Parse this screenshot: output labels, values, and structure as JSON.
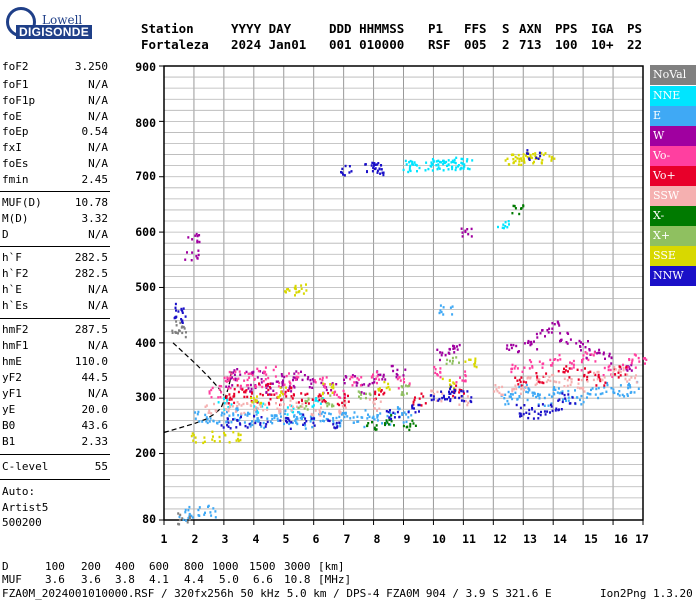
{
  "logo": {
    "line1": "Lowell",
    "line2": "DIGISONDE"
  },
  "header": {
    "labels": [
      "Station",
      "YYYY DAY",
      "DDD HHMMSS",
      "P1",
      "FFS",
      "S",
      "AXN",
      "PPS",
      "IGA",
      "PS"
    ],
    "values": [
      "Fortaleza",
      "2024 Jan01",
      "001 010000",
      "RSF",
      "005",
      "2",
      "713",
      "100",
      "10+",
      "22"
    ]
  },
  "params": [
    {
      "label": "foF2",
      "value": "3.250"
    },
    {
      "label": "foF1",
      "value": "N/A"
    },
    {
      "label": "foF1p",
      "value": "N/A"
    },
    {
      "label": "foE",
      "value": "N/A"
    },
    {
      "label": "foEp",
      "value": "0.54"
    },
    {
      "label": "fxI",
      "value": "N/A"
    },
    {
      "label": "foEs",
      "value": "N/A"
    },
    {
      "label": "fmin",
      "value": "2.45"
    },
    {
      "label": "MUF(D)",
      "value": "10.78"
    },
    {
      "label": "M(D)",
      "value": "3.32"
    },
    {
      "label": "D",
      "value": "N/A"
    },
    {
      "label": "h`F",
      "value": "282.5"
    },
    {
      "label": "h`F2",
      "value": "282.5"
    },
    {
      "label": "h`E",
      "value": "N/A"
    },
    {
      "label": "h`Es",
      "value": "N/A"
    },
    {
      "label": "hmF2",
      "value": "287.5"
    },
    {
      "label": "hmF1",
      "value": "N/A"
    },
    {
      "label": "hmE",
      "value": "110.0"
    },
    {
      "label": "yF2",
      "value": "44.5"
    },
    {
      "label": "yF1",
      "value": "N/A"
    },
    {
      "label": "yE",
      "value": "20.0"
    },
    {
      "label": "B0",
      "value": "43.6"
    },
    {
      "label": "B1",
      "value": "2.33"
    },
    {
      "label": "C-level",
      "value": "55"
    }
  ],
  "auto": {
    "line1": "Auto:",
    "line2": "Artist5",
    "line3": "500200"
  },
  "legend": [
    {
      "label": "NoVal",
      "color": "#808080",
      "text_color": "#ffffff"
    },
    {
      "label": "NNE",
      "color": "#00e5ff",
      "text_color": "#ffffff"
    },
    {
      "label": "E",
      "color": "#3fa9f5",
      "text_color": "#ffffff"
    },
    {
      "label": "W",
      "color": "#a000a0",
      "text_color": "#ffffff"
    },
    {
      "label": "Vo-",
      "color": "#ff3fa0",
      "text_color": "#ffffff"
    },
    {
      "label": "Vo+",
      "color": "#e8002a",
      "text_color": "#ffffff"
    },
    {
      "label": "SSW",
      "color": "#f5b0b0",
      "text_color": "#ffffff"
    },
    {
      "label": "X-",
      "color": "#007a00",
      "text_color": "#ffffff"
    },
    {
      "label": "X+",
      "color": "#8fc060",
      "text_color": "#ffffff"
    },
    {
      "label": "SSE",
      "color": "#d8d800",
      "text_color": "#ffffff"
    },
    {
      "label": "NNW",
      "color": "#1a10c8",
      "text_color": "#ffffff"
    }
  ],
  "chart_data": {
    "type": "scatter",
    "xlim": [
      1,
      17
    ],
    "ylim": [
      80,
      900
    ],
    "x_ticks": [
      "1",
      "2",
      "3",
      "4",
      "5",
      "6",
      "7",
      "8",
      "9",
      "10",
      "11",
      "12",
      "13",
      "14",
      "15",
      "16",
      "17"
    ],
    "y_ticks": [
      "900",
      "800",
      "700",
      "600",
      "500",
      "400",
      "300",
      "200",
      "80"
    ],
    "trace_curve": [
      [
        1.0,
        238
      ],
      [
        1.5,
        246
      ],
      [
        2.0,
        254
      ],
      [
        2.4,
        262
      ],
      [
        2.7,
        272
      ],
      [
        2.9,
        282
      ],
      [
        3.0,
        295
      ],
      [
        3.1,
        310
      ],
      [
        3.2,
        330
      ],
      [
        3.25,
        350
      ]
    ],
    "trace_curve_upper": [
      [
        1.3,
        400
      ],
      [
        1.7,
        380
      ],
      [
        2.1,
        360
      ],
      [
        2.5,
        338
      ],
      [
        2.8,
        320
      ],
      [
        3.0,
        305
      ]
    ],
    "series": [
      {
        "name": "NNE",
        "points": [
          [
            9.9,
            722
          ],
          [
            10.1,
            724
          ],
          [
            10.3,
            725
          ],
          [
            10.5,
            723
          ],
          [
            10.7,
            726
          ],
          [
            10.9,
            725
          ],
          [
            11.1,
            724
          ],
          [
            9.2,
            720
          ],
          [
            9.4,
            721
          ],
          [
            12.3,
            620
          ],
          [
            3.0,
            292
          ],
          [
            4.2,
            285
          ],
          [
            5.3,
            278
          ],
          [
            6.1,
            292
          ]
        ]
      },
      {
        "name": "E",
        "points": [
          [
            2.2,
            270
          ],
          [
            2.6,
            262
          ],
          [
            3.1,
            268
          ],
          [
            3.4,
            275
          ],
          [
            3.7,
            262
          ],
          [
            4.0,
            270
          ],
          [
            4.3,
            258
          ],
          [
            4.6,
            265
          ],
          [
            4.9,
            270
          ],
          [
            5.2,
            262
          ],
          [
            5.5,
            268
          ],
          [
            5.8,
            258
          ],
          [
            6.1,
            265
          ],
          [
            6.4,
            270
          ],
          [
            6.7,
            262
          ],
          [
            7.1,
            268
          ],
          [
            7.5,
            260
          ],
          [
            7.9,
            272
          ],
          [
            8.3,
            265
          ],
          [
            8.7,
            275
          ],
          [
            9.1,
            268
          ],
          [
            12.4,
            300
          ],
          [
            12.7,
            310
          ],
          [
            13.0,
            318
          ],
          [
            13.3,
            305
          ],
          [
            13.7,
            298
          ],
          [
            14.1,
            312
          ],
          [
            14.5,
            308
          ],
          [
            14.9,
            300
          ],
          [
            15.4,
            312
          ],
          [
            15.8,
            320
          ],
          [
            16.3,
            315
          ],
          [
            16.7,
            322
          ],
          [
            1.6,
            90
          ],
          [
            2.0,
            95
          ],
          [
            2.5,
            97
          ],
          [
            10.4,
            460
          ]
        ]
      },
      {
        "name": "W",
        "points": [
          [
            1.9,
            560
          ],
          [
            1.95,
            590
          ],
          [
            3.2,
            330
          ],
          [
            3.5,
            345
          ],
          [
            3.8,
            320
          ],
          [
            4.1,
            340
          ],
          [
            4.4,
            318
          ],
          [
            4.8,
            335
          ],
          [
            5.1,
            325
          ],
          [
            5.5,
            342
          ],
          [
            6.0,
            330
          ],
          [
            6.5,
            320
          ],
          [
            7.2,
            335
          ],
          [
            7.8,
            320
          ],
          [
            8.2,
            340
          ],
          [
            8.8,
            350
          ],
          [
            10.3,
            380
          ],
          [
            10.7,
            390
          ],
          [
            11.1,
            605
          ],
          [
            12.6,
            390
          ],
          [
            13.2,
            400
          ],
          [
            13.6,
            420
          ],
          [
            14.1,
            430
          ],
          [
            14.4,
            410
          ],
          [
            14.9,
            395
          ],
          [
            15.3,
            380
          ],
          [
            15.7,
            375
          ],
          [
            16.4,
            360
          ]
        ]
      },
      {
        "name": "Vo-",
        "points": [
          [
            2.7,
            310
          ],
          [
            3.0,
            330
          ],
          [
            3.3,
            340
          ],
          [
            3.6,
            325
          ],
          [
            3.9,
            345
          ],
          [
            4.2,
            332
          ],
          [
            4.5,
            348
          ],
          [
            4.9,
            320
          ],
          [
            5.3,
            338
          ],
          [
            6.2,
            330
          ],
          [
            6.8,
            312
          ],
          [
            7.4,
            330
          ],
          [
            8.0,
            340
          ],
          [
            9.0,
            330
          ],
          [
            10.2,
            350
          ],
          [
            10.9,
            340
          ],
          [
            12.8,
            355
          ],
          [
            13.4,
            360
          ],
          [
            14.1,
            370
          ],
          [
            14.7,
            360
          ],
          [
            15.2,
            375
          ],
          [
            15.8,
            350
          ],
          [
            16.5,
            365
          ],
          [
            16.9,
            375
          ]
        ]
      },
      {
        "name": "Vo+",
        "points": [
          [
            3.1,
            300
          ],
          [
            3.5,
            315
          ],
          [
            3.9,
            305
          ],
          [
            4.3,
            318
          ],
          [
            4.7,
            300
          ],
          [
            5.2,
            312
          ],
          [
            5.7,
            300
          ],
          [
            6.3,
            305
          ],
          [
            7.0,
            300
          ],
          [
            8.1,
            310
          ],
          [
            9.5,
            300
          ],
          [
            10.8,
            315
          ],
          [
            12.9,
            335
          ],
          [
            13.6,
            340
          ],
          [
            14.3,
            350
          ],
          [
            15.0,
            345
          ],
          [
            15.6,
            335
          ],
          [
            16.2,
            350
          ]
        ]
      },
      {
        "name": "SSW",
        "points": [
          [
            2.5,
            282
          ],
          [
            3.2,
            288
          ],
          [
            3.7,
            284
          ],
          [
            4.2,
            290
          ],
          [
            4.8,
            284
          ],
          [
            5.4,
            288
          ],
          [
            6.1,
            280
          ],
          [
            7.0,
            285
          ],
          [
            8.0,
            290
          ],
          [
            10.1,
            305
          ],
          [
            10.9,
            300
          ],
          [
            12.2,
            315
          ],
          [
            12.8,
            320
          ],
          [
            13.3,
            330
          ],
          [
            13.9,
            340
          ],
          [
            14.4,
            332
          ],
          [
            15.0,
            325
          ],
          [
            15.5,
            340
          ],
          [
            16.1,
            348
          ],
          [
            16.6,
            338
          ]
        ]
      },
      {
        "name": "X-",
        "points": [
          [
            7.9,
            250
          ],
          [
            8.5,
            262
          ],
          [
            9.2,
            255
          ],
          [
            12.8,
            645
          ]
        ]
      },
      {
        "name": "X+",
        "points": [
          [
            5.6,
            292
          ],
          [
            6.4,
            298
          ],
          [
            7.7,
            310
          ],
          [
            9.0,
            315
          ],
          [
            10.6,
            370
          ]
        ]
      },
      {
        "name": "SSE",
        "points": [
          [
            12.6,
            733
          ],
          [
            12.8,
            735
          ],
          [
            13.0,
            734
          ],
          [
            13.2,
            736
          ],
          [
            13.5,
            735
          ],
          [
            13.8,
            737
          ],
          [
            5.2,
            495
          ],
          [
            5.5,
            497
          ],
          [
            2.1,
            228
          ],
          [
            2.8,
            231
          ],
          [
            3.3,
            232
          ],
          [
            4.0,
            300
          ],
          [
            5.0,
            312
          ],
          [
            6.5,
            318
          ],
          [
            8.3,
            322
          ],
          [
            10.5,
            330
          ],
          [
            11.2,
            365
          ]
        ]
      },
      {
        "name": "NNW",
        "points": [
          [
            7.9,
            718
          ],
          [
            8.1,
            720
          ],
          [
            8.3,
            715
          ],
          [
            7.1,
            715
          ],
          [
            13.3,
            740
          ],
          [
            10.1,
            305
          ],
          [
            10.4,
            308
          ],
          [
            10.7,
            312
          ],
          [
            11.0,
            305
          ],
          [
            12.9,
            280
          ],
          [
            13.3,
            275
          ],
          [
            13.7,
            282
          ],
          [
            14.1,
            290
          ],
          [
            14.5,
            300
          ],
          [
            1.5,
            465
          ],
          [
            1.5,
            442
          ],
          [
            3.1,
            255
          ],
          [
            3.6,
            258
          ],
          [
            4.2,
            260
          ],
          [
            5.0,
            257
          ],
          [
            5.8,
            262
          ],
          [
            6.6,
            258
          ],
          [
            8.6,
            270
          ],
          [
            9.3,
            280
          ]
        ]
      },
      {
        "name": "NoVal",
        "points": [
          [
            1.45,
            430
          ],
          [
            1.5,
            420
          ],
          [
            1.6,
            85
          ]
        ]
      }
    ]
  },
  "footer": {
    "d_label": "D",
    "d_values": [
      "100",
      "200",
      "400",
      "600",
      "800",
      "1000",
      "1500",
      "3000",
      "[km]"
    ],
    "muf_label": "MUF",
    "muf_values": [
      "3.6",
      "3.6",
      "3.8",
      "4.1",
      "4.4",
      "5.0",
      "6.6",
      "10.8",
      "[MHz]"
    ],
    "file_line": "FZA0M_2024001010000.RSF / 320fx256h 50 kHz 5.0 km / DPS-4 FZA0M 904 / 3.9 S 321.6 E",
    "version": "Ion2Png 1.3.20"
  }
}
